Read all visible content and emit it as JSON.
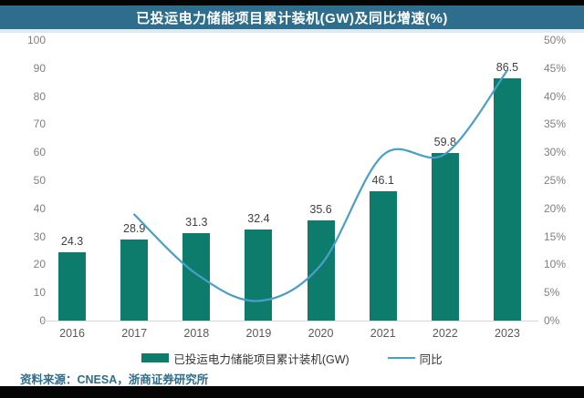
{
  "title_bar": {
    "title": "已投运电力储能项目累计装机(GW)及同比增速(%)"
  },
  "chart_data": {
    "type": "bar",
    "title": "已投运电力储能项目累计装机(GW)及同比增速(%)",
    "categories": [
      "2016",
      "2017",
      "2018",
      "2019",
      "2020",
      "2021",
      "2022",
      "2023"
    ],
    "series": [
      {
        "name": "已投运电力储能项目累计装机(GW)",
        "type": "bar",
        "axis": "left",
        "color": "#0E7C6D",
        "values": [
          24.3,
          28.9,
          31.3,
          32.4,
          35.6,
          46.1,
          59.8,
          86.5
        ],
        "labels": [
          "24.3",
          "28.9",
          "31.3",
          "32.4",
          "35.6",
          "46.1",
          "59.8",
          "86.5"
        ]
      },
      {
        "name": "同比",
        "type": "line",
        "axis": "right",
        "color": "#4A9FC8",
        "values": [
          null,
          18.9,
          8.3,
          3.5,
          9.9,
          29.5,
          29.7,
          44.6
        ]
      }
    ],
    "left_axis": {
      "min": 0,
      "max": 100,
      "ticks": [
        "0",
        "10",
        "20",
        "30",
        "40",
        "50",
        "60",
        "70",
        "80",
        "90",
        "100"
      ]
    },
    "right_axis": {
      "min": 0,
      "max": 50,
      "ticks": [
        "0%",
        "5%",
        "10%",
        "15%",
        "20%",
        "25%",
        "30%",
        "35%",
        "40%",
        "45%",
        "50%"
      ]
    },
    "grid": false,
    "legend_position": "bottom"
  },
  "legend": {
    "bar_label": "已投运电力储能项目累计装机(GW)",
    "line_label": "同比"
  },
  "footer": {
    "source_text": "资料来源：CNESA，浙商证券研究所"
  },
  "colors": {
    "header_bg": "#2E6D8C",
    "header_text": "#FFFFFF",
    "bar_fill": "#0E7C6D",
    "line_stroke": "#4A9FC8",
    "axis_tick_text": "#7F7F7F",
    "x_tick_text": "#595959",
    "data_label_text": "#3F3F3F",
    "source_text": "#2E6D8C",
    "edge_strip": "#050505"
  }
}
